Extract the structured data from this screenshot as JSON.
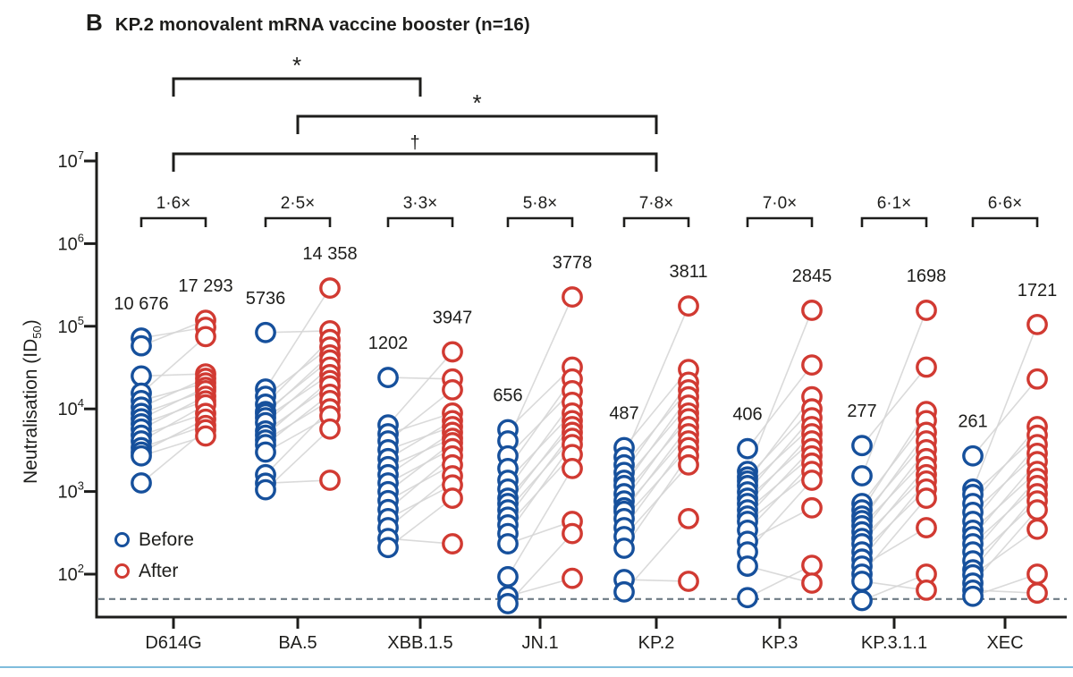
{
  "header": {
    "panel_label": "B",
    "title": "KP.2 monovalent mRNA vaccine booster (n=16)"
  },
  "legend": {
    "before": "Before",
    "after": "After"
  },
  "ylabel": {
    "pre": "Neutralisation (ID",
    "sub": "50",
    "post": ")"
  },
  "colors": {
    "before": "#16509c",
    "after": "#d13a32",
    "pair_line": "#d6d6d6",
    "axis": "#1d1d1b",
    "lod_line": "#6e7b85",
    "footer_rule": "#7fbcdc"
  },
  "chart_data": {
    "type": "scatter",
    "subtype": "paired_dot_plot",
    "title": "KP.2 monovalent mRNA vaccine booster (n=16)",
    "n": 16,
    "ylabel": "Neutralisation (ID50)",
    "yscale": "log",
    "ylim": [
      30,
      10000000
    ],
    "ytick_exponents": [
      2,
      3,
      4,
      5,
      6,
      7
    ],
    "limit_of_detection": 50,
    "grid": false,
    "legend_position": "lower-left",
    "categories": [
      "D614G",
      "BA.5",
      "XBB.1.5",
      "JN.1",
      "KP.2",
      "KP.3",
      "KP.3.1.1",
      "XEC"
    ],
    "fold_changes": [
      "1·6×",
      "2·5×",
      "3·3×",
      "5·8×",
      "7·8×",
      "7·0×",
      "6·1×",
      "6·6×"
    ],
    "gmt_before": [
      "10 676",
      "5736",
      "1202",
      "656",
      "487",
      "406",
      "277",
      "261"
    ],
    "gmt_after": [
      "17 293",
      "14 358",
      "3947",
      "3778",
      "3811",
      "2845",
      "1698",
      "1721"
    ],
    "significance": [
      {
        "from": 0,
        "to": 2,
        "symbol": "*"
      },
      {
        "from": 1,
        "to": 4,
        "symbol": "*"
      },
      {
        "from": 0,
        "to": 4,
        "symbol": "†"
      }
    ],
    "groups": [
      {
        "category": "D614G",
        "before": [
          72000,
          58000,
          25000,
          15500,
          12600,
          10500,
          8800,
          7600,
          6600,
          5700,
          4800,
          4100,
          3400,
          3000,
          2700,
          1270
        ],
        "after": [
          97000,
          118000,
          26500,
          75000,
          20600,
          23400,
          16600,
          18200,
          12500,
          14200,
          8800,
          11200,
          6300,
          7500,
          4700,
          5600
        ]
      },
      {
        "category": "BA.5",
        "before": [
          84000,
          17400,
          14200,
          11400,
          9300,
          8700,
          7800,
          6800,
          5400,
          4800,
          4200,
          3700,
          3000,
          1600,
          1260,
          1050
        ],
        "after": [
          88000,
          290000,
          56000,
          69000,
          39000,
          45000,
          26000,
          32000,
          19000,
          22000,
          12600,
          15000,
          8200,
          10000,
          1370,
          5700
        ]
      },
      {
        "category": "XBB.1.5",
        "before": [
          24000,
          6400,
          5000,
          4100,
          3200,
          2500,
          2000,
          1600,
          1270,
          995,
          777,
          605,
          470,
          365,
          270,
          210
        ],
        "after": [
          23000,
          49000,
          8900,
          17000,
          6100,
          7200,
          4400,
          5200,
          3300,
          3900,
          2100,
          2700,
          1200,
          1550,
          233,
          830
        ]
      },
      {
        "category": "JN.1",
        "before": [
          5600,
          4100,
          2700,
          1900,
          1370,
          1070,
          830,
          715,
          600,
          490,
          395,
          310,
          233,
          93,
          54,
          44
        ],
        "after": [
          32000,
          226000,
          16600,
          23000,
          8900,
          12000,
          6100,
          7200,
          4400,
          5200,
          2800,
          3700,
          435,
          1900,
          89,
          310
        ]
      },
      {
        "category": "KP.2",
        "before": [
          3400,
          2600,
          2100,
          1700,
          1370,
          1180,
          940,
          770,
          635,
          575,
          470,
          365,
          285,
          206,
          86,
          61
        ],
        "after": [
          30000,
          176000,
          17000,
          21000,
          11100,
          14000,
          7600,
          8900,
          5000,
          6100,
          3400,
          4100,
          2100,
          2700,
          82,
          470
        ]
      },
      {
        "category": "KP.3",
        "before": [
          3300,
          1750,
          1500,
          1340,
          1180,
          990,
          830,
          715,
          600,
          505,
          435,
          340,
          250,
          186,
          125,
          52
        ],
        "after": [
          34000,
          156000,
          10000,
          14000,
          6100,
          7800,
          4100,
          5000,
          2700,
          3300,
          1750,
          2200,
          635,
          1370,
          78,
          128
        ]
      },
      {
        "category": "KP.3.1.1",
        "before": [
          3600,
          1550,
          715,
          600,
          505,
          445,
          385,
          325,
          270,
          233,
          186,
          152,
          125,
          100,
          82,
          48
        ],
        "after": [
          32000,
          156000,
          7200,
          9300,
          4100,
          5200,
          2500,
          3200,
          1600,
          2000,
          1070,
          1340,
          365,
          830,
          64,
          100
        ]
      },
      {
        "category": "XEC",
        "before": [
          2700,
          1070,
          920,
          715,
          560,
          435,
          340,
          285,
          233,
          186,
          145,
          113,
          98,
          78,
          64,
          54
        ],
        "after": [
          23000,
          105000,
          4800,
          6100,
          2900,
          3700,
          1750,
          2300,
          1180,
          1440,
          770,
          940,
          350,
          600,
          59,
          100
        ]
      }
    ]
  }
}
